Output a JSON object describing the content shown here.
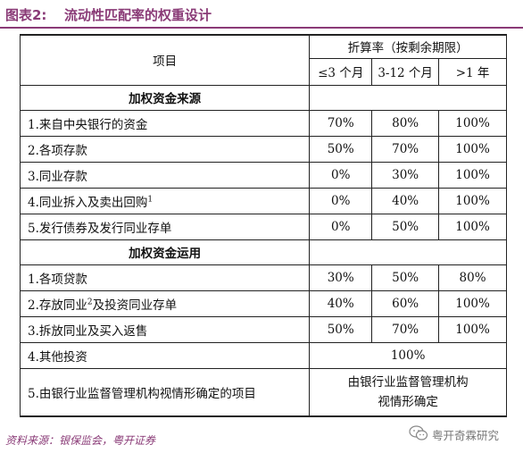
{
  "figure": {
    "label": "图表2:",
    "title": "流动性匹配率的权重设计"
  },
  "table": {
    "header": {
      "item": "项目",
      "group": "折算率（按剩余期限）",
      "col1": "≤3 个月",
      "col2": "3-12 个月",
      "col3": ">1 年"
    },
    "section_sources": "加权资金来源",
    "sources": [
      {
        "label": "1.来自中央银行的资金",
        "sup": "",
        "v1": "70%",
        "v2": "80%",
        "v3": "100%"
      },
      {
        "label": "2.各项存款",
        "sup": "",
        "v1": "50%",
        "v2": "70%",
        "v3": "100%"
      },
      {
        "label": "3.同业存款",
        "sup": "",
        "v1": "0%",
        "v2": "30%",
        "v3": "100%"
      },
      {
        "label": "4.同业拆入及卖出回购",
        "sup": "1",
        "v1": "0%",
        "v2": "40%",
        "v3": "100%"
      },
      {
        "label": "5.发行债券及发行同业存单",
        "sup": "",
        "v1": "0%",
        "v2": "50%",
        "v3": "100%"
      }
    ],
    "section_uses": "加权资金运用",
    "uses": [
      {
        "label_a": "1.各项贷款",
        "sup": "",
        "label_b": "",
        "v1": "30%",
        "v2": "50%",
        "v3": "80%"
      },
      {
        "label_a": "2.存放同业",
        "sup": "2",
        "label_b": "及投资同业存单",
        "v1": "40%",
        "v2": "60%",
        "v3": "100%"
      },
      {
        "label_a": "3.拆放同业及买入返售",
        "sup": "",
        "label_b": "",
        "v1": "50%",
        "v2": "70%",
        "v3": "100%"
      }
    ],
    "other_investment": {
      "label": "4.其他投资",
      "value": "100%"
    },
    "regulator_item": {
      "label": "5.由银行业监督管理机构视情形确定的项目",
      "value_line1": "由银行业监督管理机构",
      "value_line2": "视情形确定"
    }
  },
  "source_note": "资料来源：银保监会，粤开证券",
  "watermark": {
    "text": "粤开奇霖研究",
    "icon": "wechat-icon"
  },
  "colors": {
    "accent": "#8a3b77"
  }
}
